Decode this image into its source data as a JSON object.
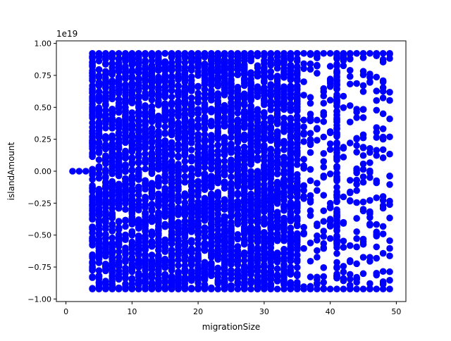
{
  "chart_data": {
    "type": "scatter",
    "title": "",
    "xlabel": "migrationSize",
    "ylabel": "islandAmount",
    "y_offset_label": "1e19",
    "x_ticks": [
      0,
      10,
      20,
      30,
      40,
      50
    ],
    "x_tick_labels": [
      "0",
      "10",
      "20",
      "30",
      "40",
      "50"
    ],
    "y_ticks": [
      -1.0,
      -0.75,
      -0.5,
      -0.25,
      0.0,
      0.25,
      0.5,
      0.75,
      1.0
    ],
    "y_tick_labels": [
      "−1.00",
      "−0.75",
      "−0.50",
      "−0.25",
      "0.00",
      "0.25",
      "0.50",
      "0.75",
      "1.00"
    ],
    "xlim": [
      -1.45,
      51.45
    ],
    "ylim": [
      -1.02,
      1.02
    ],
    "grid": false,
    "marker_color": "#0000ff",
    "series": [
      {
        "points_at_zero": [
          [
            1,
            0.0
          ],
          [
            2,
            0.0
          ],
          [
            3,
            0.0
          ]
        ],
        "x_range_dense": [
          4,
          49
        ],
        "y_range_dense": [
          -0.922,
          0.922
        ],
        "x_sparse_columns": [
          36,
          37,
          38,
          39,
          40,
          42,
          43,
          44,
          45,
          46,
          47,
          48,
          49
        ]
      }
    ]
  }
}
